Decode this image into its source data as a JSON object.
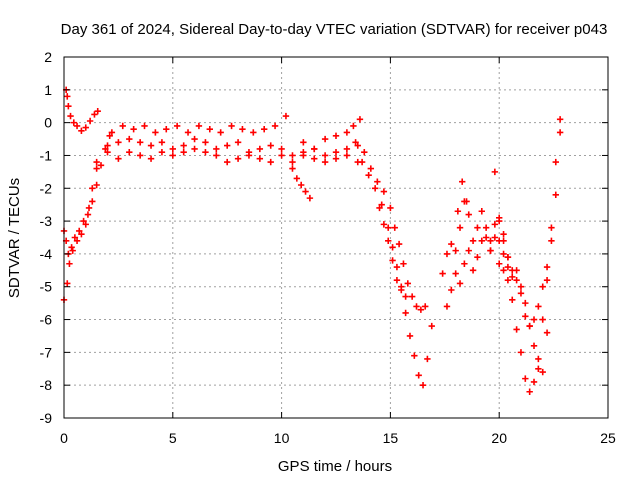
{
  "chart_data": {
    "type": "scatter",
    "title": "Day 361 of 2024, Sidereal Day-to-day VTEC variation (SDTVAR) for receiver p043",
    "xlabel": "GPS time / hours",
    "ylabel": "SDTVAR / TECUs",
    "xlim": [
      0,
      25
    ],
    "ylim": [
      -9,
      2
    ],
    "xticks": [
      0,
      5,
      10,
      15,
      20,
      25
    ],
    "yticks": [
      -9,
      -8,
      -7,
      -6,
      -5,
      -4,
      -3,
      -2,
      -1,
      0,
      1,
      2
    ],
    "grid": true,
    "marker": "+",
    "color": "#ff0000",
    "series": [
      {
        "name": "SDTVAR",
        "segments": [
          {
            "x": [
              0.0,
              0.15,
              0.25,
              0.4,
              0.6,
              0.8,
              1.0,
              1.15,
              1.3,
              1.5
            ],
            "y": [
              -5.4,
              -4.9,
              -4.3,
              -3.9,
              -3.6,
              -3.4,
              -3.1,
              -2.6,
              -2.0,
              -1.4
            ]
          },
          {
            "x": [
              0.0,
              0.1,
              0.2,
              0.35,
              0.5,
              0.7,
              0.9,
              1.1,
              1.3,
              1.5,
              1.7,
              1.9,
              2.1
            ],
            "y": [
              -3.3,
              -3.6,
              -4.0,
              -3.8,
              -3.5,
              -3.3,
              -3.0,
              -2.8,
              -2.4,
              -1.9,
              -1.3,
              -0.8,
              -0.4
            ]
          },
          {
            "x": [
              0.1,
              0.15,
              0.2,
              0.3,
              0.45,
              0.6,
              0.8,
              1.0,
              1.2,
              1.4,
              1.55
            ],
            "y": [
              1.0,
              0.8,
              0.5,
              0.2,
              0.0,
              -0.1,
              -0.25,
              -0.15,
              0.05,
              0.25,
              0.35
            ]
          },
          {
            "x": [
              1.5,
              2.0,
              2.5,
              3.0,
              3.5,
              4.0,
              4.5,
              5.0,
              5.5,
              6.0,
              6.5,
              7.0,
              7.5,
              8.0,
              8.5,
              9.0,
              9.5,
              10.0,
              10.5,
              11.0,
              11.5,
              12.0,
              12.5,
              13.0,
              13.5
            ],
            "y": [
              -1.2,
              -0.7,
              -0.6,
              -0.5,
              -0.6,
              -0.7,
              -0.6,
              -0.8,
              -0.7,
              -0.5,
              -0.6,
              -0.8,
              -0.7,
              -0.6,
              -0.9,
              -0.8,
              -0.7,
              -0.8,
              -1.0,
              -0.9,
              -0.8,
              -1.0,
              -0.9,
              -0.8,
              -0.7
            ]
          },
          {
            "x": [
              2.0,
              2.5,
              3.0,
              3.5,
              4.0,
              4.5,
              5.0,
              5.5,
              6.0,
              6.5,
              7.0,
              7.5,
              8.0,
              8.5,
              9.0,
              9.5,
              10.0,
              10.5,
              11.0,
              11.5,
              12.0,
              12.5,
              13.0,
              13.5
            ],
            "y": [
              -0.9,
              -1.1,
              -0.9,
              -1.0,
              -1.1,
              -0.9,
              -1.0,
              -0.9,
              -0.8,
              -0.9,
              -1.0,
              -1.2,
              -1.1,
              -1.0,
              -1.1,
              -1.2,
              -1.0,
              -1.2,
              -1.0,
              -1.1,
              -1.2,
              -1.1,
              -1.0,
              -1.2
            ]
          },
          {
            "x": [
              2.2,
              2.7,
              3.2,
              3.7,
              4.2,
              4.7,
              5.2,
              5.7,
              6.2,
              6.7,
              7.2,
              7.7,
              8.2,
              8.7,
              9.2,
              9.7,
              10.2
            ],
            "y": [
              -0.3,
              -0.1,
              -0.2,
              -0.1,
              -0.3,
              -0.2,
              -0.1,
              -0.3,
              -0.1,
              -0.2,
              -0.3,
              -0.1,
              -0.2,
              -0.3,
              -0.2,
              -0.1,
              0.2
            ]
          },
          {
            "x": [
              10.5,
              10.7,
              10.9,
              11.1,
              11.3
            ],
            "y": [
              -1.4,
              -1.7,
              -1.9,
              -2.1,
              -2.3
            ]
          },
          {
            "x": [
              11.0,
              11.5,
              12.0,
              12.5,
              13.0,
              13.3,
              13.6
            ],
            "y": [
              -0.6,
              -0.8,
              -0.5,
              -0.4,
              -0.3,
              -0.1,
              0.1
            ]
          },
          {
            "x": [
              13.4,
              13.7,
              14.0,
              14.3,
              14.6,
              14.9,
              15.1,
              15.3,
              15.5,
              15.7,
              15.9,
              16.1,
              16.3,
              16.5,
              16.7,
              16.9
            ],
            "y": [
              -0.6,
              -1.2,
              -1.6,
              -2.0,
              -2.5,
              -3.2,
              -3.8,
              -4.4,
              -5.0,
              -5.8,
              -6.5,
              -7.1,
              -7.7,
              -8.0,
              -7.2,
              -6.2
            ]
          },
          {
            "x": [
              13.8,
              14.1,
              14.4,
              14.7,
              15.0,
              15.2,
              15.4,
              15.6,
              15.8,
              16.0,
              16.2,
              16.4,
              16.6
            ],
            "y": [
              -0.9,
              -1.4,
              -1.8,
              -2.1,
              -2.6,
              -3.2,
              -3.7,
              -4.3,
              -4.9,
              -5.3,
              -5.6,
              -5.7,
              -5.6
            ]
          },
          {
            "x": [
              14.5,
              14.7,
              14.9,
              15.1,
              15.3,
              15.5,
              15.7
            ],
            "y": [
              -2.6,
              -3.1,
              -3.6,
              -4.2,
              -4.8,
              -5.1,
              -5.3
            ]
          },
          {
            "x": [
              17.4,
              17.6,
              17.8,
              18.0,
              18.2,
              18.4,
              18.6,
              18.8,
              19.0,
              19.2,
              19.4,
              19.6,
              19.8,
              20.0,
              20.2,
              20.4,
              20.6
            ],
            "y": [
              -4.6,
              -4.0,
              -3.7,
              -3.9,
              -3.2,
              -2.4,
              -2.8,
              -3.6,
              -3.2,
              -2.7,
              -3.5,
              -3.9,
              -3.1,
              -3.6,
              -4.0,
              -4.4,
              -4.7
            ]
          },
          {
            "x": [
              17.6,
              17.8,
              18.0,
              18.2,
              18.4,
              18.6,
              18.8,
              19.0,
              19.2,
              19.4,
              19.6,
              19.8,
              20.0,
              20.2,
              20.4
            ],
            "y": [
              -5.6,
              -5.1,
              -4.6,
              -4.9,
              -4.3,
              -3.9,
              -4.5,
              -4.1,
              -3.6,
              -3.2,
              -3.9,
              -3.5,
              -3.0,
              -3.6,
              -4.1
            ]
          },
          {
            "x": [
              18.1,
              18.3,
              18.5
            ],
            "y": [
              -2.7,
              -1.8,
              -2.4
            ]
          },
          {
            "x": [
              19.6,
              19.8,
              20.0,
              20.2,
              20.4,
              20.6,
              20.8,
              21.0,
              21.2,
              21.4,
              21.6,
              21.8,
              22.0,
              22.2,
              22.4,
              22.6,
              22.8
            ],
            "y": [
              -3.6,
              -1.5,
              -2.9,
              -3.4,
              -4.1,
              -4.5,
              -4.8,
              -5.2,
              -5.9,
              -6.2,
              -6.0,
              -5.6,
              -5.0,
              -4.4,
              -3.6,
              -2.2,
              -0.3
            ]
          },
          {
            "x": [
              20.0,
              20.2,
              20.4,
              20.6,
              20.8,
              21.0,
              21.2,
              21.4,
              21.6,
              21.8,
              22.0,
              22.2,
              22.4,
              22.6,
              22.8
            ],
            "y": [
              -4.3,
              -4.5,
              -4.8,
              -5.4,
              -6.3,
              -7.0,
              -7.8,
              -8.2,
              -7.9,
              -7.2,
              -6.0,
              -4.8,
              -3.2,
              -1.2,
              0.1
            ]
          },
          {
            "x": [
              20.8,
              21.0,
              21.2,
              21.4,
              21.6,
              21.8,
              22.0,
              22.2
            ],
            "y": [
              -4.5,
              -5.0,
              -5.5,
              -6.2,
              -6.8,
              -7.5,
              -7.6,
              -6.4
            ]
          }
        ]
      }
    ]
  }
}
